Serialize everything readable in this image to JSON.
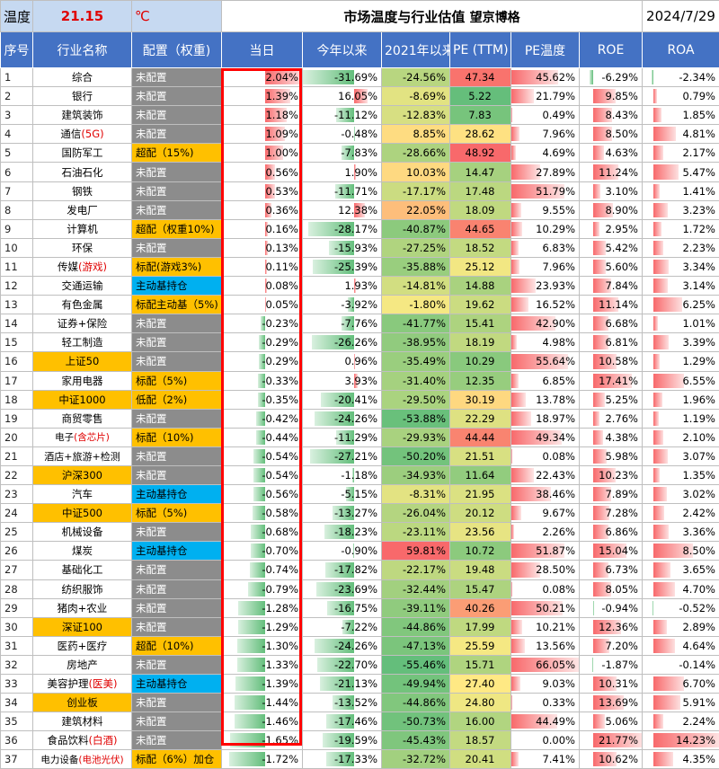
{
  "header": {
    "temp_label": "温度",
    "temp_value": "21.15",
    "temp_unit": "℃",
    "title": "市场温度与行业估值",
    "author": "望京博格",
    "date": "2024/7/29"
  },
  "columns": [
    "序号",
    "行业名称",
    "配置（权重)",
    "当日",
    "今年以来",
    "2021年以来",
    "PE (TTM)",
    "PE温度",
    "ROE",
    "ROA"
  ],
  "rows": [
    {
      "idx": "1",
      "name": "综合",
      "name_suffix": "",
      "cfg": "未配置",
      "cfg_type": "none",
      "today": "2.04%",
      "ytd": "-31.69%",
      "since2021": "-24.56%",
      "pe": "47.34",
      "pe_temp": "45.62%",
      "roe": "-6.29%",
      "roa": "-2.34%"
    },
    {
      "idx": "2",
      "name": "银行",
      "name_suffix": "",
      "cfg": "未配置",
      "cfg_type": "none",
      "today": "1.39%",
      "ytd": "16.05%",
      "since2021": "-8.69%",
      "pe": "5.22",
      "pe_temp": "21.79%",
      "roe": "9.85%",
      "roa": "0.79%"
    },
    {
      "idx": "3",
      "name": "建筑装饰",
      "name_suffix": "",
      "cfg": "未配置",
      "cfg_type": "none",
      "today": "1.18%",
      "ytd": "-11.12%",
      "since2021": "-12.83%",
      "pe": "7.83",
      "pe_temp": "0.49%",
      "roe": "8.43%",
      "roa": "1.85%"
    },
    {
      "idx": "4",
      "name": "通信",
      "name_suffix": "(5G)",
      "cfg": "未配置",
      "cfg_type": "none",
      "today": "1.09%",
      "ytd": "-0.48%",
      "since2021": "8.85%",
      "pe": "28.62",
      "pe_temp": "7.96%",
      "roe": "8.50%",
      "roa": "4.81%"
    },
    {
      "idx": "5",
      "name": "国防军工",
      "name_suffix": "",
      "cfg": "超配（15%)",
      "cfg_type": "over",
      "today": "1.00%",
      "ytd": "-7.83%",
      "since2021": "-28.66%",
      "pe": "48.92",
      "pe_temp": "4.69%",
      "roe": "4.63%",
      "roa": "2.17%"
    },
    {
      "idx": "6",
      "name": "石油石化",
      "name_suffix": "",
      "cfg": "未配置",
      "cfg_type": "none",
      "today": "0.56%",
      "ytd": "1.90%",
      "since2021": "10.03%",
      "pe": "14.47",
      "pe_temp": "27.89%",
      "roe": "11.24%",
      "roa": "5.47%"
    },
    {
      "idx": "7",
      "name": "钢铁",
      "name_suffix": "",
      "cfg": "未配置",
      "cfg_type": "none",
      "today": "0.53%",
      "ytd": "-11.71%",
      "since2021": "-17.17%",
      "pe": "17.48",
      "pe_temp": "51.79%",
      "roe": "3.10%",
      "roa": "1.41%"
    },
    {
      "idx": "8",
      "name": "发电厂",
      "name_suffix": "",
      "cfg": "未配置",
      "cfg_type": "none",
      "today": "0.36%",
      "ytd": "12.38%",
      "since2021": "22.05%",
      "pe": "18.09",
      "pe_temp": "9.55%",
      "roe": "8.90%",
      "roa": "3.23%"
    },
    {
      "idx": "9",
      "name": "计算机",
      "name_suffix": "",
      "cfg": "超配（权重10%)",
      "cfg_type": "over",
      "today": "0.16%",
      "ytd": "-28.17%",
      "since2021": "-40.87%",
      "pe": "44.65",
      "pe_temp": "10.29%",
      "roe": "2.95%",
      "roa": "1.72%"
    },
    {
      "idx": "10",
      "name": "环保",
      "name_suffix": "",
      "cfg": "未配置",
      "cfg_type": "none",
      "today": "0.13%",
      "ytd": "-15.93%",
      "since2021": "-27.25%",
      "pe": "18.52",
      "pe_temp": "6.83%",
      "roe": "5.42%",
      "roa": "2.23%"
    },
    {
      "idx": "11",
      "name": "传媒",
      "name_suffix": "(游戏)",
      "cfg": "标配(游戏3%)",
      "cfg_type": "std",
      "today": "0.11%",
      "ytd": "-25.39%",
      "since2021": "-35.88%",
      "pe": "25.12",
      "pe_temp": "7.96%",
      "roe": "5.60%",
      "roa": "3.34%"
    },
    {
      "idx": "12",
      "name": "交通运输",
      "name_suffix": "",
      "cfg": "主动基持仓",
      "cfg_type": "active",
      "today": "0.08%",
      "ytd": "1.93%",
      "since2021": "-14.81%",
      "pe": "14.88",
      "pe_temp": "23.93%",
      "roe": "7.84%",
      "roa": "3.14%"
    },
    {
      "idx": "13",
      "name": "有色金属",
      "name_suffix": "",
      "cfg": "标配主动基（5%)",
      "cfg_type": "std",
      "today": "0.05%",
      "ytd": "-3.92%",
      "since2021": "-1.80%",
      "pe": "19.62",
      "pe_temp": "16.52%",
      "roe": "11.14%",
      "roa": "6.25%"
    },
    {
      "idx": "14",
      "name": "证券+保险",
      "name_suffix": "",
      "cfg": "未配置",
      "cfg_type": "none",
      "today": "-0.23%",
      "ytd": "-7.76%",
      "since2021": "-41.77%",
      "pe": "15.41",
      "pe_temp": "42.90%",
      "roe": "6.68%",
      "roa": "1.01%"
    },
    {
      "idx": "15",
      "name": "轻工制造",
      "name_suffix": "",
      "cfg": "未配置",
      "cfg_type": "none",
      "today": "-0.29%",
      "ytd": "-26.26%",
      "since2021": "-38.95%",
      "pe": "18.19",
      "pe_temp": "4.98%",
      "roe": "6.81%",
      "roa": "3.39%"
    },
    {
      "idx": "16",
      "name": "上证50",
      "name_suffix": "",
      "cfg": "未配置",
      "cfg_type": "none",
      "today": "-0.29%",
      "ytd": "0.96%",
      "since2021": "-35.49%",
      "pe": "10.29",
      "pe_temp": "55.64%",
      "roe": "10.58%",
      "roa": "1.29%",
      "hl": true
    },
    {
      "idx": "17",
      "name": "家用电器",
      "name_suffix": "",
      "cfg": "标配（5%)",
      "cfg_type": "std",
      "today": "-0.33%",
      "ytd": "3.93%",
      "since2021": "-31.40%",
      "pe": "12.35",
      "pe_temp": "6.85%",
      "roe": "17.41%",
      "roa": "6.55%"
    },
    {
      "idx": "18",
      "name": "中证1000",
      "name_suffix": "",
      "cfg": "低配（2%)",
      "cfg_type": "std",
      "today": "-0.35%",
      "ytd": "-20.41%",
      "since2021": "-29.50%",
      "pe": "30.19",
      "pe_temp": "13.78%",
      "roe": "5.25%",
      "roa": "1.96%",
      "hl": true
    },
    {
      "idx": "19",
      "name": "商贸零售",
      "name_suffix": "",
      "cfg": "未配置",
      "cfg_type": "none",
      "today": "-0.42%",
      "ytd": "-24.26%",
      "since2021": "-53.88%",
      "pe": "22.29",
      "pe_temp": "18.97%",
      "roe": "2.76%",
      "roa": "1.19%"
    },
    {
      "idx": "20",
      "name": "电子",
      "name_suffix": "(含芯片)",
      "cfg": "标配（10%)",
      "cfg_type": "std",
      "today": "-0.44%",
      "ytd": "-11.29%",
      "since2021": "-29.93%",
      "pe": "44.44",
      "pe_temp": "49.34%",
      "roe": "4.38%",
      "roa": "2.10%"
    },
    {
      "idx": "21",
      "name": "酒店+旅游+检测",
      "name_suffix": "",
      "cfg": "未配置",
      "cfg_type": "none",
      "today": "-0.54%",
      "ytd": "-27.21%",
      "since2021": "-50.20%",
      "pe": "21.51",
      "pe_temp": "0.08%",
      "roe": "5.98%",
      "roa": "3.07%"
    },
    {
      "idx": "22",
      "name": "沪深300",
      "name_suffix": "",
      "cfg": "未配置",
      "cfg_type": "none",
      "today": "-0.54%",
      "ytd": "-1.18%",
      "since2021": "-34.93%",
      "pe": "11.64",
      "pe_temp": "22.43%",
      "roe": "10.23%",
      "roa": "1.35%",
      "hl": true
    },
    {
      "idx": "23",
      "name": "汽车",
      "name_suffix": "",
      "cfg": "主动基持仓",
      "cfg_type": "active",
      "today": "-0.56%",
      "ytd": "-5.15%",
      "since2021": "-8.31%",
      "pe": "21.95",
      "pe_temp": "38.46%",
      "roe": "7.89%",
      "roa": "3.02%"
    },
    {
      "idx": "24",
      "name": "中证500",
      "name_suffix": "",
      "cfg": "标配（5%)",
      "cfg_type": "std",
      "today": "-0.58%",
      "ytd": "-13.27%",
      "since2021": "-26.04%",
      "pe": "20.12",
      "pe_temp": "9.67%",
      "roe": "7.28%",
      "roa": "2.42%",
      "hl": true
    },
    {
      "idx": "25",
      "name": "机械设备",
      "name_suffix": "",
      "cfg": "未配置",
      "cfg_type": "none",
      "today": "-0.68%",
      "ytd": "-18.23%",
      "since2021": "-23.11%",
      "pe": "23.56",
      "pe_temp": "2.26%",
      "roe": "6.86%",
      "roa": "3.36%"
    },
    {
      "idx": "26",
      "name": "煤炭",
      "name_suffix": "",
      "cfg": "主动基持仓",
      "cfg_type": "active",
      "today": "-0.70%",
      "ytd": "-0.90%",
      "since2021": "59.81%",
      "pe": "10.72",
      "pe_temp": "51.87%",
      "roe": "15.04%",
      "roa": "8.50%"
    },
    {
      "idx": "27",
      "name": "基础化工",
      "name_suffix": "",
      "cfg": "未配置",
      "cfg_type": "none",
      "today": "-0.74%",
      "ytd": "-17.82%",
      "since2021": "-22.17%",
      "pe": "19.48",
      "pe_temp": "28.50%",
      "roe": "6.73%",
      "roa": "3.65%"
    },
    {
      "idx": "28",
      "name": "纺织服饰",
      "name_suffix": "",
      "cfg": "未配置",
      "cfg_type": "none",
      "today": "-0.79%",
      "ytd": "-23.69%",
      "since2021": "-32.44%",
      "pe": "15.47",
      "pe_temp": "0.08%",
      "roe": "8.05%",
      "roa": "4.70%"
    },
    {
      "idx": "29",
      "name": "猪肉+农业",
      "name_suffix": "",
      "cfg": "未配置",
      "cfg_type": "none",
      "today": "-1.28%",
      "ytd": "-16.75%",
      "since2021": "-39.11%",
      "pe": "40.26",
      "pe_temp": "50.21%",
      "roe": "-0.94%",
      "roa": "-0.52%"
    },
    {
      "idx": "30",
      "name": "深证100",
      "name_suffix": "",
      "cfg": "未配置",
      "cfg_type": "none",
      "today": "-1.29%",
      "ytd": "-7.22%",
      "since2021": "-44.86%",
      "pe": "17.99",
      "pe_temp": "10.21%",
      "roe": "12.36%",
      "roa": "2.89%",
      "hl": true
    },
    {
      "idx": "31",
      "name": "医药+医疗",
      "name_suffix": "",
      "cfg": "超配（10%)",
      "cfg_type": "over",
      "today": "-1.30%",
      "ytd": "-24.26%",
      "since2021": "-47.13%",
      "pe": "25.59",
      "pe_temp": "13.56%",
      "roe": "7.20%",
      "roa": "4.64%"
    },
    {
      "idx": "32",
      "name": "房地产",
      "name_suffix": "",
      "cfg": "未配置",
      "cfg_type": "none",
      "today": "-1.33%",
      "ytd": "-22.70%",
      "since2021": "-55.46%",
      "pe": "15.71",
      "pe_temp": "66.05%",
      "roe": "-1.87%",
      "roa": "-0.14%"
    },
    {
      "idx": "33",
      "name": "美容护理",
      "name_suffix": "(医美)",
      "cfg": "主动基持仓",
      "cfg_type": "active",
      "today": "-1.39%",
      "ytd": "-21.13%",
      "since2021": "-49.94%",
      "pe": "27.40",
      "pe_temp": "9.03%",
      "roe": "10.31%",
      "roa": "6.70%"
    },
    {
      "idx": "34",
      "name": "创业板",
      "name_suffix": "",
      "cfg": "未配置",
      "cfg_type": "none",
      "today": "-1.44%",
      "ytd": "-13.52%",
      "since2021": "-44.86%",
      "pe": "24.80",
      "pe_temp": "0.33%",
      "roe": "13.69%",
      "roa": "5.91%",
      "hl": true
    },
    {
      "idx": "35",
      "name": "建筑材料",
      "name_suffix": "",
      "cfg": "未配置",
      "cfg_type": "none",
      "today": "-1.46%",
      "ytd": "-17.46%",
      "since2021": "-50.73%",
      "pe": "16.00",
      "pe_temp": "44.49%",
      "roe": "5.06%",
      "roa": "2.24%"
    },
    {
      "idx": "36",
      "name": "食品饮料",
      "name_suffix": "(白酒)",
      "cfg": "未配置",
      "cfg_type": "none",
      "today": "-1.65%",
      "ytd": "-19.59%",
      "since2021": "-45.43%",
      "pe": "18.57",
      "pe_temp": "0.00%",
      "roe": "21.77%",
      "roa": "14.23%"
    },
    {
      "idx": "37",
      "name": "电力设备",
      "name_suffix": "(电池光伏)",
      "cfg": "标配（6%）加仓",
      "cfg_type": "std",
      "today": "-1.72%",
      "ytd": "-17.33%",
      "since2021": "-32.72%",
      "pe": "20.41",
      "pe_temp": "7.41%",
      "roe": "10.62%",
      "roa": "4.35%"
    }
  ]
}
